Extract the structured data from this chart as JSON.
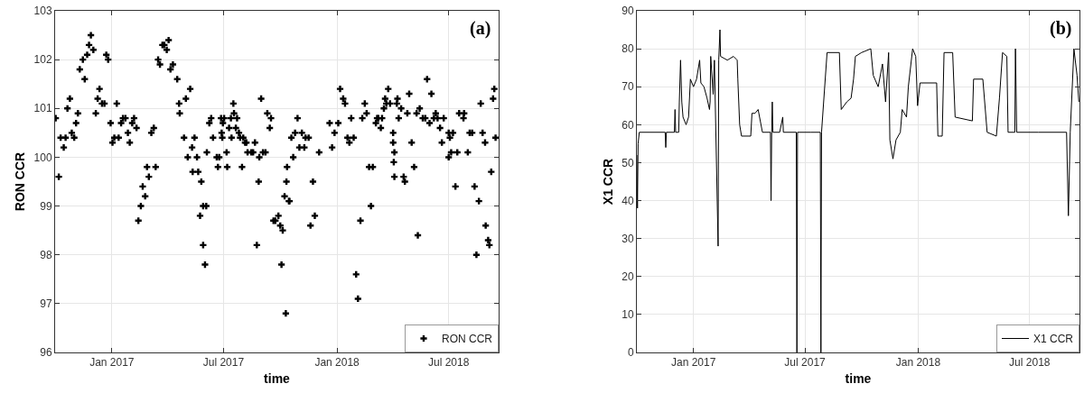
{
  "chart_data": [
    {
      "type": "scatter",
      "xlabel": "time",
      "ylabel": "RON CCR",
      "annotations": [
        "(a)"
      ],
      "grid": true,
      "legend": "bottom right",
      "marker": "cross",
      "xlim": [
        "2016-10-01",
        "2018-09-20"
      ],
      "xticks": [
        {
          "value": "2017-01-01",
          "label": "Jan 2017"
        },
        {
          "value": "2017-07-01",
          "label": "Jul 2017"
        },
        {
          "value": "2018-01-01",
          "label": "Jan 2018"
        },
        {
          "value": "2018-07-01",
          "label": "Jul 2018"
        }
      ],
      "ylim": [
        96,
        103
      ],
      "yticks": [
        96,
        97,
        98,
        99,
        100,
        101,
        102,
        103
      ],
      "x": [
        "2016-10-02",
        "2016-10-07",
        "2016-10-10",
        "2016-10-15",
        "2016-10-18",
        "2016-10-21",
        "2016-10-25",
        "2016-10-28",
        "2016-11-01",
        "2016-11-04",
        "2016-11-07",
        "2016-11-10",
        "2016-11-15",
        "2016-11-18",
        "2016-11-22",
        "2016-11-25",
        "2016-11-28",
        "2016-12-02",
        "2016-12-06",
        "2016-12-09",
        "2016-12-12",
        "2016-12-16",
        "2016-12-20",
        "2016-12-23",
        "2016-12-26",
        "2016-12-30",
        "2017-01-02",
        "2017-01-05",
        "2017-01-09",
        "2017-01-12",
        "2017-01-16",
        "2017-01-19",
        "2017-01-23",
        "2017-01-27",
        "2017-01-30",
        "2017-02-03",
        "2017-02-06",
        "2017-02-10",
        "2017-02-13",
        "2017-02-17",
        "2017-02-20",
        "2017-02-24",
        "2017-02-27",
        "2017-03-02",
        "2017-03-06",
        "2017-03-10",
        "2017-03-13",
        "2017-03-17",
        "2017-03-20",
        "2017-03-24",
        "2017-03-27",
        "2017-03-31",
        "2017-04-03",
        "2017-04-06",
        "2017-04-10",
        "2017-04-17",
        "2017-04-20",
        "2017-04-21",
        "2017-04-28",
        "2017-05-01",
        "2017-05-04",
        "2017-05-08",
        "2017-05-11",
        "2017-05-12",
        "2017-05-15",
        "2017-05-19",
        "2017-05-21",
        "2017-05-24",
        "2017-05-26",
        "2017-05-29",
        "2017-05-29",
        "2017-06-01",
        "2017-06-03",
        "2017-06-04",
        "2017-06-08",
        "2017-06-11",
        "2017-06-14",
        "2017-06-20",
        "2017-06-22",
        "2017-06-24",
        "2017-06-27",
        "2017-06-28",
        "2017-06-29",
        "2017-06-30",
        "2017-07-02",
        "2017-07-06",
        "2017-07-07",
        "2017-07-10",
        "2017-07-13",
        "2017-07-14",
        "2017-07-17",
        "2017-07-18",
        "2017-07-21",
        "2017-07-23",
        "2017-07-26",
        "2017-07-28",
        "2017-07-31",
        "2017-08-02",
        "2017-08-05",
        "2017-08-07",
        "2017-08-09",
        "2017-08-15",
        "2017-08-18",
        "2017-08-21",
        "2017-08-24",
        "2017-08-27",
        "2017-08-28",
        "2017-08-31",
        "2017-09-03",
        "2017-09-07",
        "2017-09-10",
        "2017-09-14",
        "2017-09-16",
        "2017-09-20",
        "2017-09-23",
        "2017-09-28",
        "2017-10-01",
        "2017-10-03",
        "2017-10-05",
        "2017-10-08",
        "2017-10-10",
        "2017-10-11",
        "2017-10-12",
        "2017-10-15",
        "2017-10-16",
        "2017-10-19",
        "2017-10-22",
        "2017-10-25",
        "2017-10-29",
        "2017-11-01",
        "2017-11-05",
        "2017-11-09",
        "2017-11-11",
        "2017-11-16",
        "2017-11-19",
        "2017-11-23",
        "2017-11-26",
        "2017-12-03",
        "2017-12-20",
        "2017-12-24",
        "2017-12-28",
        "2018-01-03",
        "2018-01-06",
        "2018-01-11",
        "2018-01-14",
        "2018-01-18",
        "2018-01-21",
        "2018-01-24",
        "2018-01-28",
        "2018-02-01",
        "2018-02-04",
        "2018-02-08",
        "2018-02-11",
        "2018-02-15",
        "2018-02-18",
        "2018-02-22",
        "2018-02-25",
        "2018-02-28",
        "2018-03-05",
        "2018-03-07",
        "2018-03-09",
        "2018-03-13",
        "2018-03-15",
        "2018-03-18",
        "2018-03-20",
        "2018-03-22",
        "2018-03-25",
        "2018-03-28",
        "2018-04-02",
        "2018-04-02",
        "2018-04-03",
        "2018-04-04",
        "2018-04-04",
        "2018-04-08",
        "2018-04-09",
        "2018-04-11",
        "2018-04-15",
        "2018-04-19",
        "2018-04-21",
        "2018-04-25",
        "2018-04-28",
        "2018-05-02",
        "2018-05-06",
        "2018-05-10",
        "2018-05-12",
        "2018-05-15",
        "2018-05-20",
        "2018-05-24",
        "2018-05-27",
        "2018-05-31",
        "2018-06-03",
        "2018-06-07",
        "2018-06-10",
        "2018-06-13",
        "2018-06-17",
        "2018-06-20",
        "2018-06-23",
        "2018-07-01",
        "2018-07-01",
        "2018-07-03",
        "2018-07-05",
        "2018-07-08",
        "2018-07-12",
        "2018-07-15",
        "2018-07-18",
        "2018-07-25",
        "2018-07-26",
        "2018-08-01",
        "2018-08-04",
        "2018-08-08",
        "2018-08-12",
        "2018-08-15",
        "2018-08-19",
        "2018-08-22",
        "2018-08-25",
        "2018-08-29",
        "2018-08-30",
        "2018-09-03",
        "2018-09-05",
        "2018-09-08",
        "2018-09-11",
        "2018-09-13",
        "2018-09-15"
      ],
      "series": [
        {
          "name": "RON CCR",
          "color": "#000000",
          "values": [
            100.8,
            99.6,
            100.4,
            100.2,
            100.4,
            101.0,
            101.2,
            100.5,
            100.4,
            100.7,
            100.9,
            101.8,
            102.0,
            101.6,
            102.1,
            102.3,
            102.5,
            102.2,
            100.9,
            101.2,
            101.4,
            101.1,
            101.1,
            102.1,
            102.0,
            100.7,
            100.3,
            100.4,
            101.1,
            100.4,
            100.7,
            100.8,
            100.8,
            100.5,
            100.3,
            100.7,
            100.8,
            100.6,
            98.7,
            99.0,
            99.4,
            99.2,
            99.8,
            99.6,
            100.5,
            100.6,
            99.8,
            102.0,
            101.9,
            102.3,
            102.3,
            102.2,
            102.4,
            101.8,
            101.9,
            101.6,
            101.1,
            100.9,
            100.4,
            101.2,
            100.0,
            101.4,
            100.2,
            99.7,
            100.4,
            100.0,
            99.7,
            98.8,
            99.5,
            98.2,
            99.0,
            97.8,
            99.0,
            100.1,
            100.7,
            100.8,
            100.4,
            100.0,
            99.8,
            100.0,
            100.8,
            100.5,
            100.4,
            100.7,
            100.8,
            100.1,
            99.8,
            100.6,
            100.8,
            100.4,
            101.1,
            100.9,
            100.6,
            100.8,
            100.5,
            100.4,
            99.8,
            100.4,
            100.3,
            100.3,
            100.1,
            100.1,
            100.1,
            100.3,
            98.2,
            99.5,
            100.0,
            101.2,
            100.1,
            100.1,
            100.9,
            100.6,
            100.8,
            98.7,
            98.7,
            98.8,
            98.6,
            97.8,
            98.5,
            99.2,
            96.8,
            99.5,
            99.8,
            99.1,
            99.1,
            100.4,
            100.0,
            100.5,
            100.8,
            100.2,
            100.5,
            100.2,
            100.4,
            100.4,
            98.6,
            99.5,
            98.8,
            100.1,
            100.7,
            100.2,
            100.5,
            100.7,
            101.4,
            101.2,
            101.1,
            100.4,
            100.3,
            100.8,
            100.4,
            97.6,
            97.1,
            98.7,
            100.8,
            101.1,
            100.9,
            99.8,
            99.0,
            99.8,
            100.7,
            100.8,
            100.8,
            100.6,
            100.8,
            101.0,
            101.2,
            101.1,
            101.4,
            101.1,
            100.5,
            100.3,
            99.9,
            99.6,
            100.1,
            101.1,
            101.2,
            100.8,
            101.0,
            99.6,
            99.5,
            100.9,
            101.3,
            100.3,
            99.8,
            100.9,
            98.4,
            101.0,
            100.8,
            100.8,
            101.6,
            100.7,
            101.3,
            100.8,
            100.9,
            100.8,
            100.6,
            100.3,
            100.8,
            100.5,
            100.0,
            100.4,
            100.1,
            100.5,
            99.4,
            100.1,
            100.9,
            100.8,
            100.9,
            100.1,
            100.5,
            100.5,
            99.4,
            98.0,
            99.1,
            101.1,
            100.5,
            100.3,
            98.6,
            98.3,
            98.2,
            99.7,
            101.2,
            101.4,
            100.4
          ]
        }
      ]
    },
    {
      "type": "line",
      "xlabel": "time",
      "ylabel": "X1 CCR",
      "annotations": [
        "(b)"
      ],
      "grid": true,
      "legend": "bottom right",
      "line_style": "solid",
      "xlim": [
        "2016-10-01",
        "2018-09-20"
      ],
      "xticks": [
        {
          "value": "2017-01-01",
          "label": "Jan 2017"
        },
        {
          "value": "2017-07-01",
          "label": "Jul 2017"
        },
        {
          "value": "2018-01-01",
          "label": "Jan 2018"
        },
        {
          "value": "2018-07-01",
          "label": "Jul 2018"
        }
      ],
      "ylim": [
        0,
        90
      ],
      "yticks": [
        0,
        10,
        20,
        30,
        40,
        50,
        60,
        70,
        80,
        90
      ],
      "x": [
        "2016-10-01",
        "2016-10-02",
        "2016-10-03",
        "2016-10-05",
        "2016-10-23",
        "2016-11-16",
        "2016-11-17",
        "2016-11-18",
        "2016-12-01",
        "2016-12-02",
        "2016-12-03",
        "2016-12-08",
        "2016-12-09",
        "2016-12-11",
        "2016-12-13",
        "2016-12-15",
        "2016-12-20",
        "2016-12-24",
        "2016-12-27",
        "2017-01-01",
        "2017-01-06",
        "2017-01-11",
        "2017-01-13",
        "2017-01-18",
        "2017-01-23",
        "2017-01-27",
        "2017-01-28",
        "2017-01-29",
        "2017-02-02",
        "2017-02-04",
        "2017-02-10",
        "2017-02-11",
        "2017-02-13",
        "2017-02-14",
        "2017-02-25",
        "2017-03-07",
        "2017-03-13",
        "2017-03-14",
        "2017-03-17",
        "2017-03-20",
        "2017-04-04",
        "2017-04-06",
        "2017-04-11",
        "2017-04-16",
        "2017-04-23",
        "2017-05-06",
        "2017-05-07",
        "2017-05-08",
        "2017-05-09",
        "2017-05-10",
        "2017-05-21",
        "2017-05-26",
        "2017-05-27",
        "2017-06-17",
        "2017-06-18",
        "2017-06-19",
        "2017-07-10",
        "2017-07-26",
        "2017-07-27",
        "2017-07-28",
        "2017-08-06",
        "2017-08-26",
        "2017-08-29",
        "2017-09-07",
        "2017-09-14",
        "2017-09-18",
        "2017-09-21",
        "2017-10-01",
        "2017-10-16",
        "2017-10-20",
        "2017-10-28",
        "2017-11-04",
        "2017-11-09",
        "2017-11-14",
        "2017-11-16",
        "2017-11-21",
        "2017-11-26",
        "2017-12-03",
        "2017-12-06",
        "2017-12-13",
        "2017-12-16",
        "2017-12-23",
        "2017-12-28",
        "2017-12-31",
        "2018-01-04",
        "2018-01-31",
        "2018-02-02",
        "2018-02-09",
        "2018-02-12",
        "2018-02-26",
        "2018-03-02",
        "2018-03-30",
        "2018-04-01",
        "2018-04-16",
        "2018-04-23",
        "2018-05-08",
        "2018-05-13",
        "2018-05-18",
        "2018-05-25",
        "2018-05-27",
        "2018-06-07",
        "2018-06-08",
        "2018-06-10",
        "2018-07-15",
        "2018-08-30",
        "2018-09-02",
        "2018-09-05",
        "2018-09-11",
        "2018-09-16",
        "2018-09-19"
      ],
      "series": [
        {
          "name": "X1 CCR",
          "color": "#000000",
          "values": [
            52,
            38,
            55,
            58,
            58,
            58,
            54,
            58,
            58,
            64,
            58,
            58,
            66,
            77,
            66,
            62,
            60,
            62,
            72,
            70,
            72,
            77,
            71,
            70,
            67,
            64,
            66,
            78,
            68,
            77,
            28,
            77,
            85,
            78,
            77,
            78,
            77,
            72,
            60,
            57,
            57,
            63,
            63,
            64,
            58,
            58,
            40,
            58,
            66,
            58,
            58,
            62,
            58,
            58,
            0,
            58,
            58,
            58,
            0,
            58,
            79,
            79,
            64,
            66,
            67,
            72,
            78,
            79,
            80,
            73,
            70,
            76,
            66,
            79,
            56,
            51,
            56,
            58,
            64,
            62,
            70,
            80,
            78,
            65,
            71,
            71,
            57,
            57,
            79,
            79,
            62,
            61,
            72,
            72,
            58,
            57,
            67,
            79,
            78,
            58,
            58,
            80,
            58,
            58,
            58,
            36,
            58,
            80,
            73,
            66
          ]
        }
      ]
    }
  ]
}
